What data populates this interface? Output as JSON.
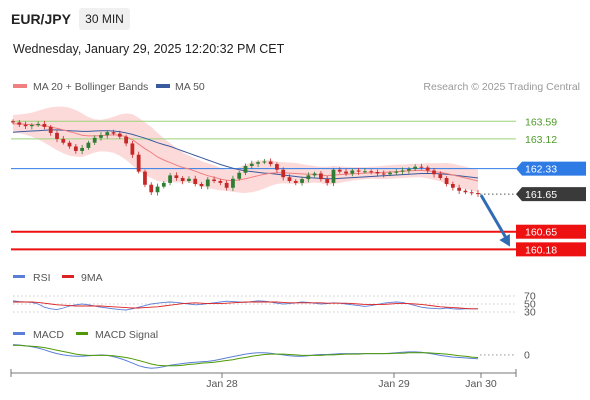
{
  "header": {
    "pair": "EUR/JPY",
    "timeframe": "30 MIN",
    "datetime": "Wednesday, January 29, 2025 12:20:32 PM CET",
    "credit": "Research © 2025 Trading Central"
  },
  "legend": {
    "ma20": "MA 20 + Bollinger Bands",
    "ma50": "MA 50",
    "rsi": "RSI",
    "rsi_ma": "9MA",
    "macd": "MACD",
    "macd_signal": "MACD Signal"
  },
  "colors": {
    "ma20": "#f07f7f",
    "ma50": "#3a5a9e",
    "bands": "#fbd4d4",
    "candle_up": "#2e7d32",
    "candle_down": "#c62828",
    "resistance": "#9bd37a",
    "support": "#ee1111",
    "current_bg": "#3a3a3a",
    "pivot_bg": "#2f7be6",
    "arrow": "#2f6cb3",
    "rsi": "#5b7fd6",
    "rsi_ma": "#dd2222",
    "macd": "#5b7fd6",
    "macd_signal": "#4e9a06"
  },
  "chart_data": [
    {
      "type": "candlestick",
      "title": "EUR/JPY",
      "x_labels": [
        "Jan 28",
        "Jan 29",
        "Jan 30"
      ],
      "ylim": [
        159.95,
        164.05
      ],
      "grid": false,
      "legend_position": "top-left",
      "levels": [
        {
          "value": 163.59,
          "label": "163.59",
          "kind": "resistance"
        },
        {
          "value": 163.12,
          "label": "163.12",
          "kind": "resistance"
        },
        {
          "value": 162.33,
          "label": "162.33",
          "kind": "pivot"
        },
        {
          "value": 161.65,
          "label": "161.65",
          "kind": "current"
        },
        {
          "value": 160.65,
          "label": "160.65",
          "kind": "support"
        },
        {
          "value": 160.18,
          "label": "160.18",
          "kind": "support"
        }
      ],
      "close": [
        163.56,
        163.5,
        163.46,
        163.49,
        163.52,
        163.44,
        163.28,
        163.12,
        163.02,
        162.92,
        162.8,
        162.88,
        163.02,
        163.15,
        163.22,
        163.3,
        163.26,
        163.18,
        163.0,
        162.7,
        162.25,
        161.9,
        161.7,
        161.85,
        161.95,
        162.15,
        162.08,
        162.0,
        162.06,
        161.92,
        161.86,
        162.04,
        162.0,
        161.95,
        161.82,
        162.06,
        162.22,
        162.4,
        162.46,
        162.5,
        162.52,
        162.45,
        162.3,
        162.1,
        162.0,
        161.95,
        162.05,
        162.15,
        162.2,
        162.05,
        161.95,
        162.3,
        162.25,
        162.2,
        162.28,
        162.25,
        162.26,
        162.24,
        162.2,
        162.18,
        162.22,
        162.25,
        162.28,
        162.32,
        162.38,
        162.36,
        162.28,
        162.18,
        162.08,
        161.92,
        161.82,
        161.74,
        161.7,
        161.68,
        161.65
      ],
      "ma20": [
        163.52,
        163.52,
        163.51,
        163.5,
        163.49,
        163.47,
        163.44,
        163.4,
        163.36,
        163.31,
        163.27,
        163.22,
        163.2,
        163.2,
        163.21,
        163.22,
        163.23,
        163.22,
        163.18,
        163.1,
        162.98,
        162.86,
        162.76,
        162.64,
        162.56,
        162.49,
        162.42,
        162.36,
        162.32,
        162.26,
        162.2,
        162.14,
        162.1,
        162.05,
        162.02,
        162.01,
        162.03,
        162.06,
        162.1,
        162.14,
        162.18,
        162.21,
        162.22,
        162.22,
        162.21,
        162.2,
        162.19,
        162.18,
        162.18,
        162.16,
        162.14,
        162.16,
        162.17,
        162.18,
        162.19,
        162.2,
        162.21,
        162.22,
        162.22,
        162.23,
        162.24,
        162.25,
        162.26,
        162.27,
        162.28,
        162.28,
        162.27,
        162.25,
        162.23,
        162.2,
        162.16,
        162.12,
        162.08,
        162.04,
        162.0
      ],
      "ma50": [
        163.3,
        163.31,
        163.32,
        163.33,
        163.34,
        163.35,
        163.36,
        163.36,
        163.35,
        163.34,
        163.33,
        163.32,
        163.32,
        163.33,
        163.34,
        163.34,
        163.33,
        163.31,
        163.28,
        163.24,
        163.19,
        163.14,
        163.08,
        163.02,
        162.97,
        162.92,
        162.86,
        162.8,
        162.74,
        162.68,
        162.62,
        162.56,
        162.5,
        162.44,
        162.39,
        162.34,
        162.3,
        162.27,
        162.25,
        162.23,
        162.21,
        162.2,
        162.18,
        162.16,
        162.14,
        162.12,
        162.1,
        162.09,
        162.08,
        162.07,
        162.06,
        162.06,
        162.07,
        162.08,
        162.09,
        162.1,
        162.11,
        162.12,
        162.13,
        162.14,
        162.15,
        162.16,
        162.17,
        162.18,
        162.19,
        162.2,
        162.2,
        162.2,
        162.19,
        162.18,
        162.16,
        162.14,
        162.12,
        162.1,
        162.08
      ],
      "band_width": [
        0.24,
        0.25,
        0.28,
        0.32,
        0.38,
        0.45,
        0.52,
        0.58,
        0.62,
        0.64,
        0.62,
        0.58,
        0.5,
        0.44,
        0.42,
        0.44,
        0.48,
        0.55,
        0.62,
        0.68,
        0.7,
        0.7,
        0.68,
        0.64,
        0.58,
        0.52,
        0.46,
        0.4,
        0.36,
        0.34,
        0.33,
        0.33,
        0.32,
        0.3,
        0.28,
        0.3,
        0.34,
        0.38,
        0.4,
        0.4,
        0.38,
        0.34,
        0.3,
        0.28,
        0.28,
        0.28,
        0.26,
        0.24,
        0.22,
        0.22,
        0.24,
        0.24,
        0.22,
        0.2,
        0.18,
        0.17,
        0.16,
        0.16,
        0.17,
        0.18,
        0.18,
        0.18,
        0.18,
        0.18,
        0.18,
        0.18,
        0.2,
        0.22,
        0.24,
        0.28,
        0.3,
        0.3,
        0.3,
        0.3,
        0.3
      ],
      "forecast": {
        "from": 161.65,
        "to": 160.52
      }
    },
    {
      "type": "line",
      "title": "RSI",
      "ylim": [
        20,
        80
      ],
      "ticks": [
        "70",
        "50",
        "30"
      ],
      "tick_values": [
        70,
        50,
        30
      ],
      "series": [
        {
          "name": "RSI",
          "values": [
            58,
            56,
            55,
            54,
            50,
            42,
            38,
            36,
            40,
            45,
            48,
            50,
            48,
            45,
            42,
            40,
            38,
            36,
            35,
            38,
            42,
            46,
            50,
            52,
            54,
            55,
            54,
            52,
            50,
            48,
            49,
            51,
            53,
            55,
            57,
            56,
            55,
            54,
            56,
            58,
            57,
            55,
            52,
            50,
            51,
            53,
            55,
            54,
            52,
            50,
            51,
            53,
            52,
            50,
            48,
            46,
            44,
            46,
            49,
            52,
            54,
            55,
            54,
            50,
            46,
            42,
            40,
            39,
            38,
            40,
            38,
            37,
            38,
            38,
            38
          ]
        },
        {
          "name": "9MA",
          "values": [
            55,
            55,
            55,
            55,
            54,
            52,
            50,
            48,
            47,
            46,
            45,
            45,
            45,
            45,
            45,
            44,
            43,
            42,
            41,
            40,
            40,
            41,
            42,
            43,
            45,
            47,
            49,
            51,
            52,
            53,
            52,
            51,
            51,
            51,
            52,
            53,
            54,
            55,
            55,
            55,
            55,
            55,
            55,
            54,
            53,
            53,
            53,
            53,
            53,
            53,
            52,
            52,
            52,
            52,
            51,
            50,
            49,
            49,
            49,
            49,
            50,
            51,
            51,
            51,
            50,
            49,
            47,
            45,
            43,
            42,
            41,
            40,
            39,
            38,
            38
          ]
        }
      ]
    },
    {
      "type": "line",
      "title": "MACD",
      "ylim": [
        -0.35,
        0.3
      ],
      "ticks": [
        "0"
      ],
      "tick_values": [
        0
      ],
      "x_labels": [
        "Jan 28",
        "Jan 29",
        "Jan 30"
      ],
      "series": [
        {
          "name": "MACD",
          "values": [
            0.24,
            0.23,
            0.21,
            0.19,
            0.16,
            0.12,
            0.07,
            0.03,
            0.0,
            -0.02,
            -0.03,
            -0.03,
            -0.02,
            -0.01,
            0.0,
            -0.01,
            -0.04,
            -0.08,
            -0.13,
            -0.19,
            -0.25,
            -0.29,
            -0.31,
            -0.3,
            -0.27,
            -0.24,
            -0.22,
            -0.2,
            -0.18,
            -0.17,
            -0.16,
            -0.15,
            -0.13,
            -0.1,
            -0.07,
            -0.04,
            -0.01,
            0.02,
            0.04,
            0.05,
            0.05,
            0.04,
            0.02,
            0.0,
            -0.02,
            -0.03,
            -0.03,
            -0.02,
            0.0,
            0.01,
            0.01,
            0.02,
            0.03,
            0.03,
            0.03,
            0.03,
            0.03,
            0.03,
            0.03,
            0.03,
            0.04,
            0.05,
            0.06,
            0.07,
            0.07,
            0.06,
            0.04,
            0.02,
            -0.01,
            -0.03,
            -0.05,
            -0.06,
            -0.07,
            -0.08,
            -0.09
          ]
        },
        {
          "name": "MACD Signal",
          "values": [
            0.22,
            0.22,
            0.21,
            0.2,
            0.19,
            0.17,
            0.14,
            0.11,
            0.08,
            0.05,
            0.02,
            0.0,
            -0.01,
            -0.01,
            -0.01,
            -0.01,
            -0.02,
            -0.04,
            -0.06,
            -0.09,
            -0.13,
            -0.17,
            -0.21,
            -0.24,
            -0.25,
            -0.25,
            -0.25,
            -0.24,
            -0.22,
            -0.21,
            -0.19,
            -0.18,
            -0.17,
            -0.15,
            -0.13,
            -0.11,
            -0.08,
            -0.06,
            -0.03,
            -0.01,
            0.01,
            0.02,
            0.02,
            0.02,
            0.01,
            0.0,
            -0.01,
            -0.01,
            -0.01,
            -0.01,
            0.0,
            0.0,
            0.01,
            0.02,
            0.02,
            0.02,
            0.03,
            0.03,
            0.03,
            0.03,
            0.03,
            0.04,
            0.04,
            0.05,
            0.05,
            0.05,
            0.05,
            0.04,
            0.03,
            0.02,
            0.0,
            -0.02,
            -0.03,
            -0.05,
            -0.06
          ]
        }
      ]
    }
  ]
}
